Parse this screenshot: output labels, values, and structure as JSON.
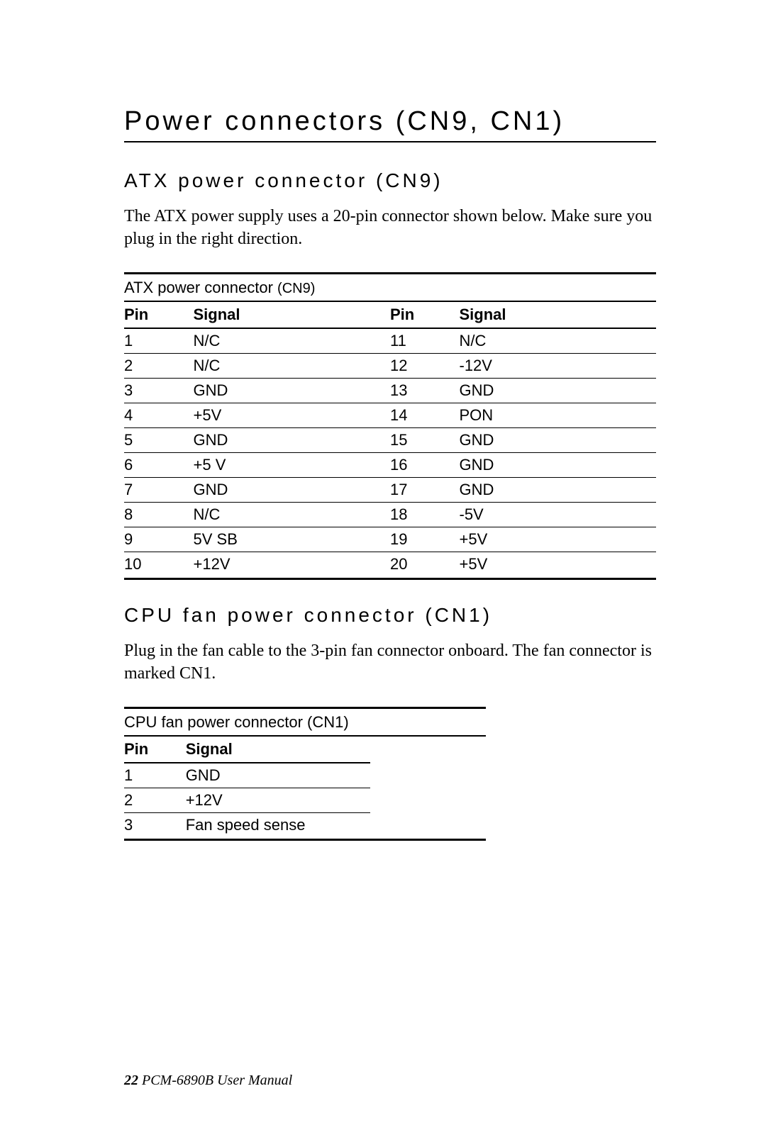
{
  "colors": {
    "text": "#000000",
    "background": "#ffffff",
    "rule": "#000000"
  },
  "title": "Power connectors (CN9, CN1)",
  "section1": {
    "heading": "ATX power connector (CN9)",
    "body": "The ATX power supply uses a 20-pin connector shown below. Make sure you plug in the right direction."
  },
  "atxTable": {
    "caption_main": "ATX power connector ",
    "caption_suffix": "(CN9)",
    "headers": {
      "pin": "Pin",
      "signal": "Signal"
    },
    "rows": [
      {
        "p1": "1",
        "s1": "N/C",
        "p2": "11",
        "s2": "N/C"
      },
      {
        "p1": "2",
        "s1": "N/C",
        "p2": "12",
        "s2": "-12V"
      },
      {
        "p1": "3",
        "s1": "GND",
        "p2": "13",
        "s2": "GND"
      },
      {
        "p1": "4",
        "s1": "+5V",
        "p2": "14",
        "s2": "PON"
      },
      {
        "p1": "5",
        "s1": "GND",
        "p2": "15",
        "s2": "GND"
      },
      {
        "p1": "6",
        "s1": "+5 V",
        "p2": "16",
        "s2": "GND"
      },
      {
        "p1": "7",
        "s1": "GND",
        "p2": "17",
        "s2": "GND"
      },
      {
        "p1": "8",
        "s1": "N/C",
        "p2": "18",
        "s2": "-5V"
      },
      {
        "p1": "9",
        "s1": "5V SB",
        "p2": "19",
        "s2": "+5V"
      },
      {
        "p1": "10",
        "s1": "+12V",
        "p2": "20",
        "s2": "+5V"
      }
    ]
  },
  "section2": {
    "heading": "CPU fan power connector (CN1)",
    "body": "Plug in the fan cable to the 3-pin fan connector onboard.  The fan connector is marked CN1."
  },
  "cpuTable": {
    "caption": "CPU fan power connector (CN1)",
    "headers": {
      "pin": "Pin",
      "signal": "Signal"
    },
    "rows": [
      {
        "p": "1",
        "s": "GND"
      },
      {
        "p": "2",
        "s": "+12V"
      },
      {
        "p": "3",
        "s": "Fan speed sense"
      }
    ]
  },
  "footer": {
    "page_num": "22",
    "doc_title": "PCM-6890B  User Manual"
  }
}
